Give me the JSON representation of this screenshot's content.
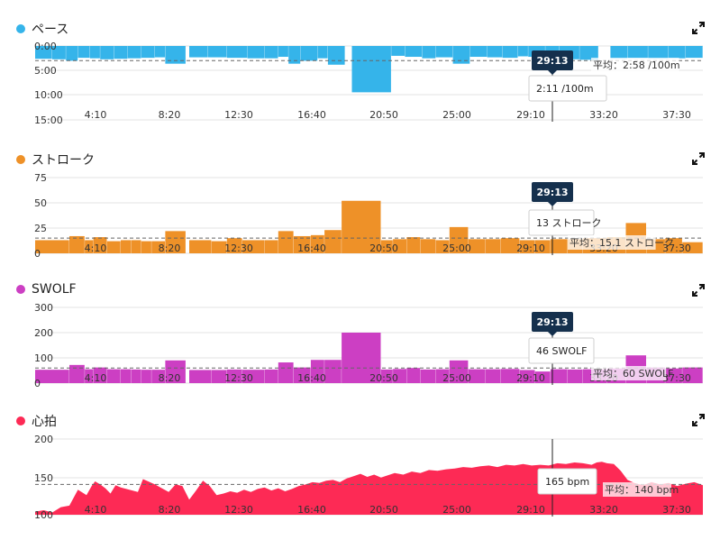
{
  "cursor_time": "29:13",
  "x_ticks": [
    "4:10",
    "8:20",
    "12:30",
    "16:40",
    "20:50",
    "25:00",
    "29:10",
    "33:20",
    "37:30"
  ],
  "colors": {
    "pace": "#35b4ea",
    "stroke": "#ee9128",
    "swolf": "#cc3fc3",
    "hr": "#fd2a55",
    "marker": "#15304d"
  },
  "icons": {
    "expand": "expand-icon"
  },
  "panels": {
    "pace": {
      "title": "ペース",
      "tooltip": "2:11 /100m",
      "avg_label": "平均：2:58 /100m"
    },
    "stroke": {
      "title": "ストローク",
      "tooltip": "13 ストローク",
      "avg_label": "平均：15.1 ストローク"
    },
    "swolf": {
      "title": "SWOLF",
      "tooltip": "46 SWOLF",
      "avg_label": "平均：60 SWOLF"
    },
    "hr": {
      "title": "心拍",
      "tooltip": "165 bpm",
      "avg_label": "平均：140 bpm"
    }
  },
  "chart_data": [
    {
      "type": "bar",
      "title": "ペース",
      "xlim": [
        0,
        39
      ],
      "ylim": [
        0,
        15
      ],
      "y_inverted": true,
      "y_ticks": [
        "0:00",
        "5:00",
        "10:00",
        "15:00"
      ],
      "average": 2.97,
      "segments": [
        [
          0,
          1,
          2.6
        ],
        [
          1,
          1.8,
          2.7
        ],
        [
          1.8,
          2.5,
          3.0
        ],
        [
          2.5,
          3.2,
          2.4
        ],
        [
          3.2,
          3.8,
          2.5
        ],
        [
          3.8,
          4.6,
          2.7
        ],
        [
          4.6,
          5.4,
          2.6
        ],
        [
          5.4,
          6.2,
          2.5
        ],
        [
          6.2,
          7.0,
          2.4
        ],
        [
          7.0,
          7.6,
          2.3
        ],
        [
          7.6,
          8.8,
          3.6
        ],
        [
          9.0,
          10.1,
          2.3
        ],
        [
          10.1,
          11.2,
          2.3
        ],
        [
          11.2,
          12.4,
          2.4
        ],
        [
          12.4,
          13.4,
          2.5
        ],
        [
          13.4,
          14.2,
          2.5
        ],
        [
          14.2,
          14.8,
          2.2
        ],
        [
          14.8,
          15.5,
          3.6
        ],
        [
          15.5,
          16.5,
          3.0
        ],
        [
          16.5,
          17.1,
          2.5
        ],
        [
          17.1,
          18.1,
          3.8
        ],
        [
          18.5,
          20.8,
          9.4
        ],
        [
          20.8,
          21.6,
          2.0
        ],
        [
          21.6,
          22.6,
          2.2
        ],
        [
          22.6,
          23.4,
          2.5
        ],
        [
          23.4,
          24.4,
          2.3
        ],
        [
          24.4,
          25.4,
          3.6
        ],
        [
          25.4,
          26.4,
          2.2
        ],
        [
          26.4,
          27.3,
          2.3
        ],
        [
          27.3,
          28.2,
          2.4
        ],
        [
          28.2,
          28.8,
          2.1
        ],
        [
          28.8,
          29.8,
          2.2
        ],
        [
          29.8,
          30.6,
          2.2
        ],
        [
          30.6,
          31.8,
          2.7
        ],
        [
          31.8,
          32.9,
          2.8
        ],
        [
          33.6,
          34.6,
          2.6
        ],
        [
          34.6,
          35.8,
          2.5
        ],
        [
          35.8,
          37.0,
          2.6
        ],
        [
          37.0,
          38.0,
          2.5
        ],
        [
          38.0,
          39.0,
          2.4
        ]
      ]
    },
    {
      "type": "bar",
      "title": "ストローク",
      "xlim": [
        0,
        39
      ],
      "ylim": [
        0,
        75
      ],
      "y_ticks": [
        "75",
        "50",
        "25",
        "0"
      ],
      "average": 15.1,
      "segments": [
        [
          0,
          2,
          13
        ],
        [
          2,
          2.9,
          17
        ],
        [
          2.9,
          3.4,
          13
        ],
        [
          3.4,
          4.2,
          16
        ],
        [
          4.2,
          5,
          12
        ],
        [
          5,
          5.6,
          13
        ],
        [
          5.6,
          6.2,
          13
        ],
        [
          6.2,
          6.8,
          12
        ],
        [
          6.8,
          7.6,
          12
        ],
        [
          7.6,
          8.8,
          22
        ],
        [
          9.0,
          10.3,
          13
        ],
        [
          10.3,
          11.2,
          12
        ],
        [
          11.2,
          12.1,
          15
        ],
        [
          12.1,
          13.4,
          13
        ],
        [
          13.4,
          14.2,
          13
        ],
        [
          14.2,
          15.1,
          22
        ],
        [
          15.1,
          16.1,
          17
        ],
        [
          16.1,
          16.9,
          18
        ],
        [
          16.9,
          17.9,
          23
        ],
        [
          17.9,
          20.2,
          52
        ],
        [
          20.2,
          20.9,
          13
        ],
        [
          20.9,
          21.7,
          14
        ],
        [
          21.7,
          22.5,
          16
        ],
        [
          22.5,
          23.4,
          14
        ],
        [
          23.4,
          24.2,
          13
        ],
        [
          24.2,
          25.3,
          26
        ],
        [
          25.3,
          26.3,
          14
        ],
        [
          26.3,
          27.2,
          14
        ],
        [
          27.2,
          28.3,
          15
        ],
        [
          28.3,
          29.2,
          13
        ],
        [
          29.2,
          30.1,
          13
        ],
        [
          30.1,
          31.1,
          14
        ],
        [
          31.1,
          32.0,
          14
        ],
        [
          32.0,
          33.4,
          15
        ],
        [
          33.4,
          34.5,
          16
        ],
        [
          34.5,
          35.7,
          30
        ],
        [
          35.7,
          36.8,
          14
        ],
        [
          36.8,
          37.8,
          15
        ],
        [
          37.8,
          39,
          11
        ]
      ]
    },
    {
      "type": "bar",
      "title": "SWOLF",
      "xlim": [
        0,
        39
      ],
      "ylim": [
        0,
        300
      ],
      "y_ticks": [
        "300",
        "200",
        "100",
        "0"
      ],
      "average": 60,
      "segments": [
        [
          0,
          2,
          53
        ],
        [
          2,
          2.9,
          72
        ],
        [
          2.9,
          3.4,
          55
        ],
        [
          3.4,
          4.2,
          62
        ],
        [
          4.2,
          5,
          55
        ],
        [
          5,
          5.6,
          55
        ],
        [
          5.6,
          6.2,
          54
        ],
        [
          6.2,
          6.8,
          53
        ],
        [
          6.8,
          7.6,
          53
        ],
        [
          7.6,
          8.8,
          90
        ],
        [
          9.0,
          10.3,
          52
        ],
        [
          10.3,
          11.2,
          52
        ],
        [
          11.2,
          12.1,
          54
        ],
        [
          12.1,
          13.4,
          53
        ],
        [
          13.4,
          14.2,
          54
        ],
        [
          14.2,
          15.1,
          82
        ],
        [
          15.1,
          16.1,
          62
        ],
        [
          16.1,
          16.9,
          92
        ],
        [
          16.9,
          17.9,
          92
        ],
        [
          17.9,
          20.2,
          200
        ],
        [
          20.2,
          20.9,
          54
        ],
        [
          20.9,
          21.7,
          56
        ],
        [
          21.7,
          22.5,
          60
        ],
        [
          22.5,
          23.4,
          54
        ],
        [
          23.4,
          24.2,
          55
        ],
        [
          24.2,
          25.3,
          90
        ],
        [
          25.3,
          26.3,
          55
        ],
        [
          26.3,
          27.2,
          55
        ],
        [
          27.2,
          28.3,
          56
        ],
        [
          28.3,
          29.2,
          52
        ],
        [
          29.2,
          30.1,
          46
        ],
        [
          30.1,
          31.1,
          55
        ],
        [
          31.1,
          32.0,
          54
        ],
        [
          32.0,
          33.4,
          55
        ],
        [
          33.4,
          34.5,
          58
        ],
        [
          34.5,
          35.7,
          110
        ],
        [
          35.7,
          36.8,
          62
        ],
        [
          36.8,
          37.8,
          58
        ],
        [
          37.8,
          39,
          62
        ]
      ]
    },
    {
      "type": "area",
      "title": "心拍",
      "xlim": [
        0,
        39
      ],
      "ylim": [
        100,
        200
      ],
      "y_ticks": [
        "200",
        "150",
        "100"
      ],
      "average": 140,
      "x": [
        0,
        0.5,
        1.0,
        1.5,
        2.0,
        2.5,
        3.0,
        3.3,
        3.5,
        3.8,
        4.1,
        4.4,
        4.7,
        5.0,
        5.5,
        6.0,
        6.3,
        6.6,
        7.0,
        7.4,
        7.8,
        8.2,
        8.6,
        9.0,
        9.4,
        9.8,
        10.2,
        10.6,
        11.0,
        11.4,
        11.8,
        12.2,
        12.6,
        13.0,
        13.4,
        13.8,
        14.2,
        14.6,
        15.0,
        15.4,
        15.8,
        16.2,
        16.6,
        17.0,
        17.4,
        17.8,
        18.2,
        18.6,
        19.0,
        19.4,
        19.8,
        20.2,
        20.6,
        21.0,
        21.5,
        22.0,
        22.5,
        23.0,
        23.5,
        24.0,
        24.5,
        25.0,
        25.5,
        26.0,
        26.5,
        27.0,
        27.5,
        28.0,
        28.5,
        29.0,
        29.5,
        30.0,
        30.5,
        31.0,
        31.5,
        32.0,
        32.5,
        32.8,
        33.1,
        33.4,
        33.8,
        34.2,
        34.6,
        35.0,
        35.5,
        36.0,
        36.5,
        37.0,
        37.5,
        38.0,
        38.5,
        39.0
      ],
      "y": [
        104,
        106,
        103,
        110,
        112,
        133,
        126,
        138,
        144,
        140,
        135,
        128,
        139,
        136,
        133,
        130,
        147,
        144,
        140,
        135,
        130,
        140,
        138,
        120,
        132,
        145,
        138,
        126,
        128,
        131,
        129,
        133,
        130,
        134,
        136,
        132,
        135,
        131,
        134,
        138,
        140,
        143,
        142,
        145,
        146,
        143,
        148,
        151,
        154,
        150,
        153,
        149,
        152,
        155,
        153,
        157,
        155,
        159,
        158,
        160,
        161,
        163,
        162,
        164,
        165,
        163,
        166,
        165,
        167,
        165,
        166,
        165,
        168,
        167,
        169,
        168,
        166,
        169,
        170,
        168,
        167,
        158,
        146,
        142,
        139,
        143,
        140,
        142,
        138,
        141,
        143,
        139
      ]
    }
  ]
}
